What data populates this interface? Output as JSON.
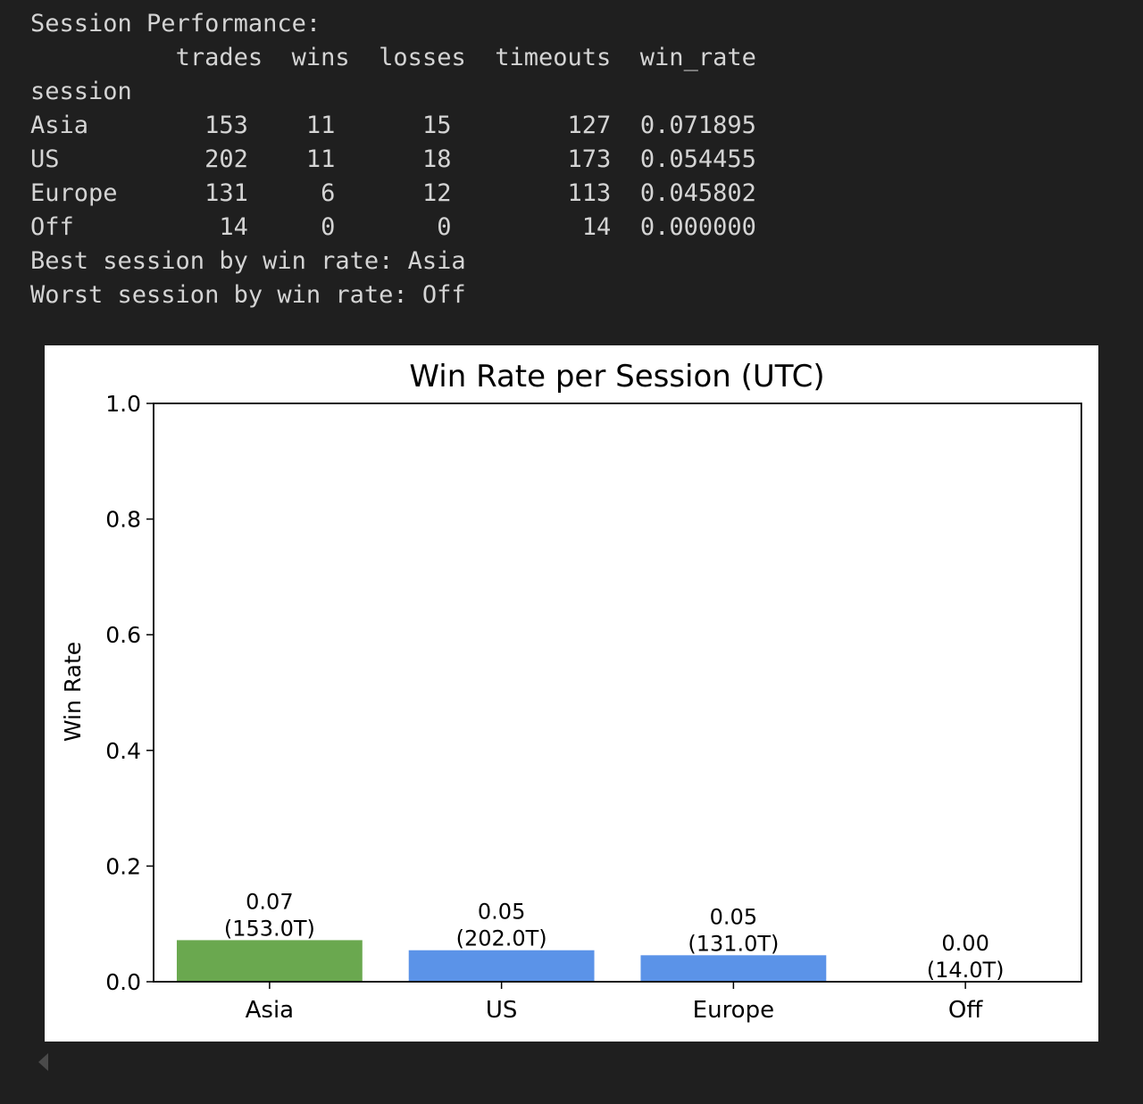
{
  "output": {
    "header": "Session Performance:",
    "columns": [
      "trades",
      "wins",
      "losses",
      "timeouts",
      "win_rate"
    ],
    "index_name": "session",
    "rows": [
      {
        "session": "Asia",
        "trades": "153",
        "wins": "11",
        "losses": "15",
        "timeouts": "127",
        "win_rate": "0.071895"
      },
      {
        "session": "US",
        "trades": "202",
        "wins": "11",
        "losses": "18",
        "timeouts": "173",
        "win_rate": "0.054455"
      },
      {
        "session": "Europe",
        "trades": "131",
        "wins": "6",
        "losses": "12",
        "timeouts": "113",
        "win_rate": "0.045802"
      },
      {
        "session": "Off",
        "trades": "14",
        "wins": "0",
        "losses": "0",
        "timeouts": "14",
        "win_rate": "0.000000"
      }
    ],
    "best_line": "Best session by win rate: Asia",
    "worst_line": "Worst session by win rate: Off"
  },
  "chart_data": {
    "type": "bar",
    "title": "Win Rate per Session (UTC)",
    "xlabel": "",
    "ylabel": "Win Rate",
    "categories": [
      "Asia",
      "US",
      "Europe",
      "Off"
    ],
    "values": [
      0.071895,
      0.054455,
      0.045802,
      0.0
    ],
    "trades": [
      153,
      202,
      131,
      14
    ],
    "bar_labels": [
      [
        "0.07",
        "(153.0T)"
      ],
      [
        "0.05",
        "(202.0T)"
      ],
      [
        "0.05",
        "(131.0T)"
      ],
      [
        "0.00",
        "(14.0T)"
      ]
    ],
    "colors": [
      "#6aa84f",
      "#5b93e8",
      "#5b93e8",
      "#5b93e8"
    ],
    "ylim": [
      0,
      1.0
    ],
    "yticks": [
      "0.0",
      "0.2",
      "0.4",
      "0.6",
      "0.8",
      "1.0"
    ],
    "grid": false,
    "legend": "none"
  }
}
